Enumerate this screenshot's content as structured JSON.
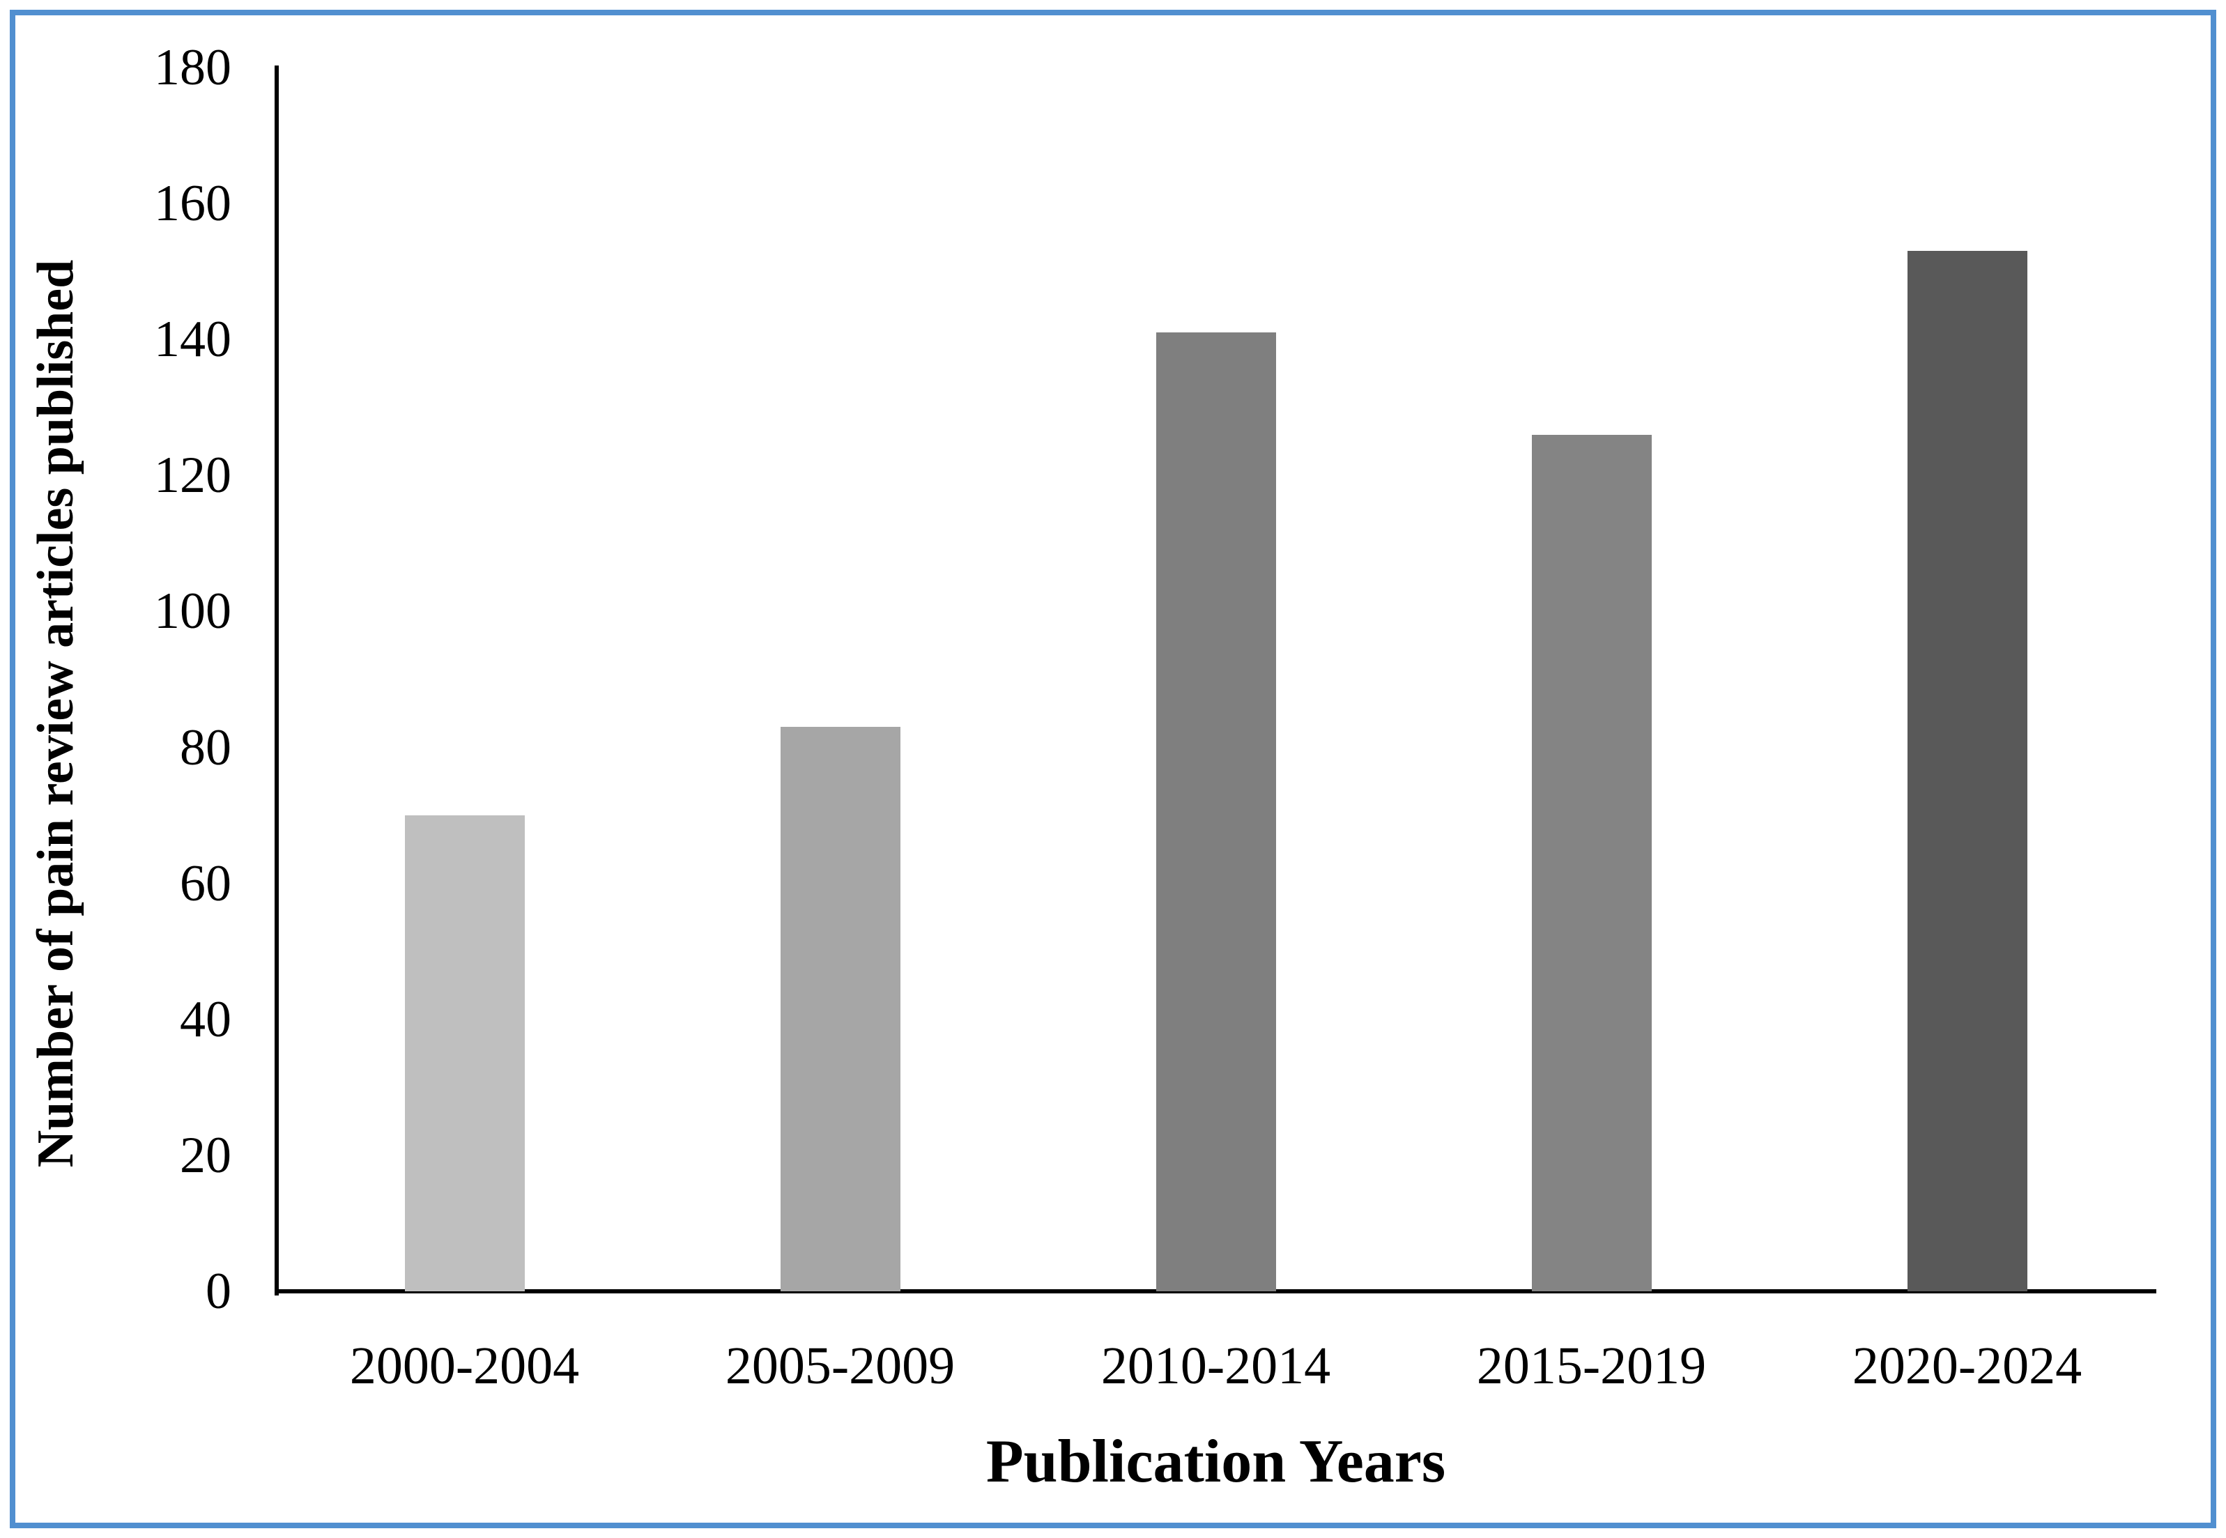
{
  "chart_data": {
    "type": "bar",
    "categories": [
      "2000-2004",
      "2005-2009",
      "2010-2014",
      "2015-2019",
      "2020-2024"
    ],
    "values": [
      70,
      83,
      141,
      126,
      153
    ],
    "bar_colors": [
      "#bfbfbf",
      "#a6a6a6",
      "#7f7f7f",
      "#848484",
      "#595959"
    ],
    "title": "",
    "xlabel": "Publication Years",
    "ylabel": "Number of pain review articles published",
    "ylim": [
      0,
      180
    ],
    "yticks": [
      0,
      20,
      40,
      60,
      80,
      100,
      120,
      140,
      160,
      180
    ],
    "grid": false,
    "legend_position": "none",
    "axis_color": "#000000",
    "frame_border_color": "#518fd0",
    "background_color": "#ffffff"
  }
}
